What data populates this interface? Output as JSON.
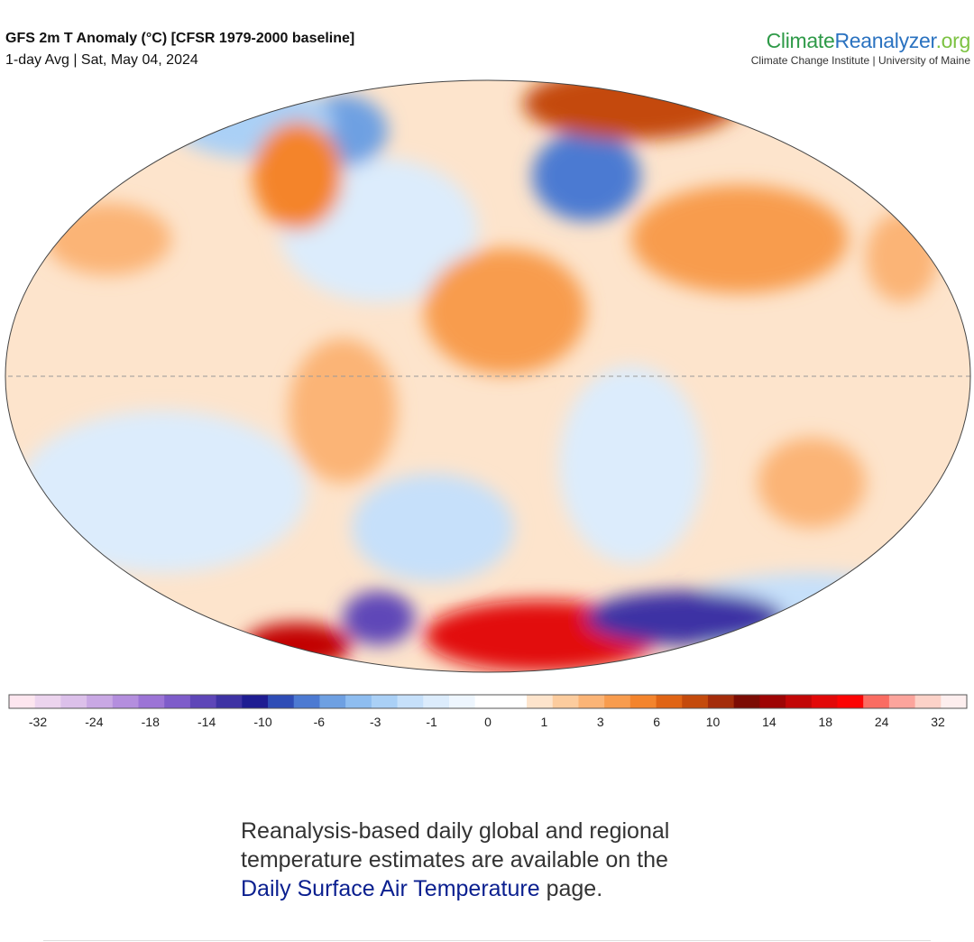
{
  "header": {
    "title": "GFS 2m T Anomaly (°C) [CFSR 1979-2000 baseline]",
    "subtitle": "1-day Avg | Sat, May 04, 2024",
    "logo": {
      "part1": "Climate",
      "part2": "Reanalyzer",
      "part3": ".org",
      "tagline": "Climate Change Institute | University of Maine"
    }
  },
  "colorbar": {
    "labels": [
      -32,
      -24,
      -18,
      -14,
      -10,
      -6,
      -3,
      -1,
      0,
      1,
      3,
      6,
      10,
      14,
      18,
      24,
      32
    ],
    "colors": [
      "#fde6ef",
      "#ecd4ee",
      "#dcc0ea",
      "#c9a8e4",
      "#b48ede",
      "#9c74d6",
      "#7e5cca",
      "#5e46b8",
      "#3e32a4",
      "#1e1c92",
      "#2e4cb6",
      "#4c7ad2",
      "#6ea0e2",
      "#8ebdf0",
      "#aad0f6",
      "#c6e0fa",
      "#dcecfc",
      "#eef6fe",
      "#ffffff",
      "#ffffff",
      "#fde4cc",
      "#fccc9e",
      "#fbb476",
      "#f89c4e",
      "#f4842c",
      "#e06414",
      "#c44a0c",
      "#a42c0a",
      "#7c0c04",
      "#9e0404",
      "#c20606",
      "#e20808",
      "#fc0404",
      "#fa6c62",
      "#fca49c",
      "#fcd2c8",
      "#fdeeee"
    ]
  },
  "description": {
    "before": "Reanalysis-based daily global and regional temperature estimates are available on the ",
    "link": "Daily Surface Air Temperature",
    "after": " page."
  }
}
